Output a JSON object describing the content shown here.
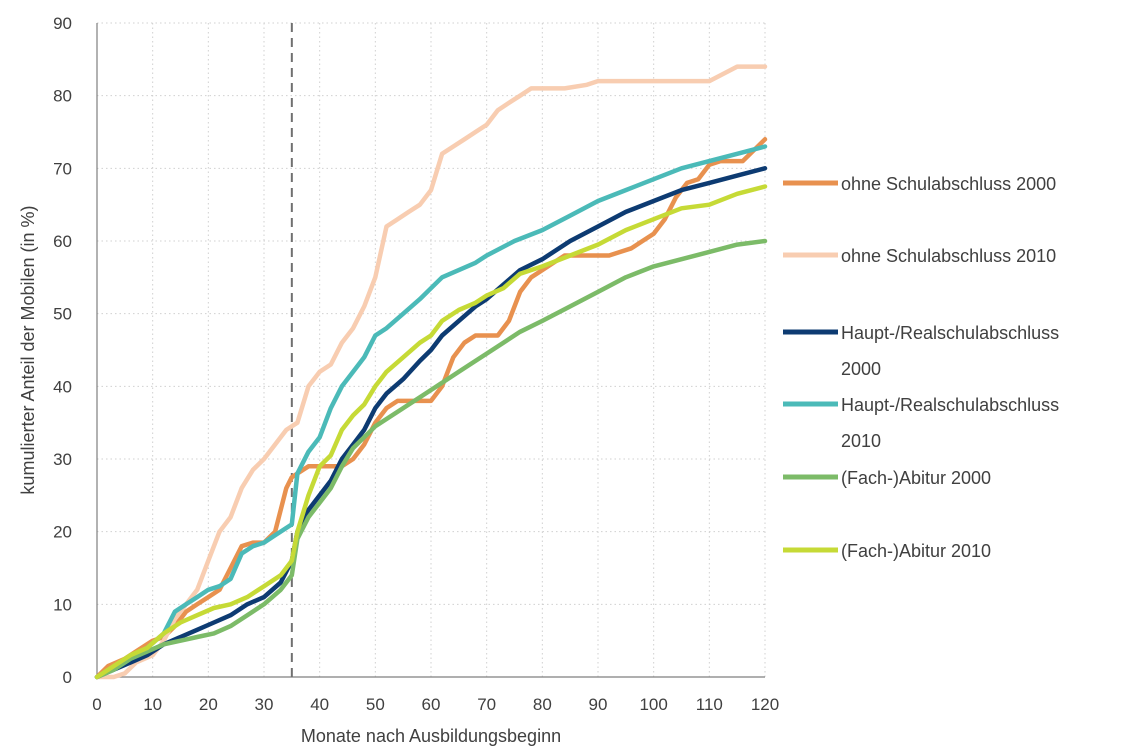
{
  "chart_data": {
    "type": "line",
    "xlabel": "Monate nach Ausbildungsbeginn",
    "ylabel": "kumulierter Anteil der Mobilen (in %)",
    "xlim": [
      0,
      120
    ],
    "ylim": [
      0,
      90
    ],
    "x_ticks": [
      0,
      10,
      20,
      30,
      40,
      50,
      60,
      70,
      80,
      90,
      100,
      110,
      120
    ],
    "y_ticks": [
      0,
      10,
      20,
      30,
      40,
      50,
      60,
      70,
      80,
      90
    ],
    "grid": "dotted",
    "reference_line": {
      "x": 35,
      "style": "dashed"
    },
    "legend_position": "right",
    "series": [
      {
        "name": "ohne Schulabschluss 2000",
        "legend_lines": [
          "ohne Schulabschluss 2000"
        ],
        "color": "#E8914F",
        "x": [
          0,
          2,
          5,
          8,
          10,
          12,
          14,
          16,
          18,
          20,
          22,
          24,
          26,
          28,
          30,
          32,
          34,
          35,
          36,
          38,
          40,
          42,
          44,
          46,
          48,
          50,
          52,
          54,
          56,
          58,
          60,
          62,
          64,
          66,
          68,
          70,
          72,
          74,
          76,
          78,
          80,
          82,
          84,
          86,
          88,
          90,
          92,
          94,
          96,
          98,
          100,
          102,
          104,
          106,
          108,
          110,
          112,
          114,
          116,
          118,
          120
        ],
        "y": [
          0,
          1.5,
          2.5,
          4,
          5,
          5.5,
          7,
          9,
          10,
          11,
          12,
          15,
          18,
          18.5,
          18.5,
          20,
          26,
          27.5,
          28,
          29,
          29,
          29,
          29,
          30,
          32,
          35,
          37,
          38,
          38,
          38,
          38,
          40,
          44,
          46,
          47,
          47,
          47,
          49,
          53,
          55,
          56,
          57,
          58,
          58,
          58,
          58,
          58,
          58.5,
          59,
          60,
          61,
          63,
          66,
          68,
          68.5,
          70.5,
          71,
          71,
          71,
          72.5,
          74
        ]
      },
      {
        "name": "ohne Schulabschluss 2010",
        "legend_lines": [
          "ohne Schulabschluss 2010"
        ],
        "color": "#F8CDB1",
        "x": [
          0,
          3,
          5,
          7,
          10,
          12,
          14,
          16,
          18,
          20,
          22,
          24,
          26,
          28,
          30,
          32,
          34,
          36,
          38,
          40,
          42,
          44,
          46,
          48,
          50,
          52,
          54,
          56,
          58,
          60,
          62,
          64,
          66,
          68,
          70,
          72,
          74,
          76,
          78,
          80,
          84,
          88,
          90,
          95,
          100,
          105,
          110,
          115,
          120
        ],
        "y": [
          0,
          0,
          0.5,
          2,
          3,
          5,
          8,
          10,
          12,
          16,
          20,
          22,
          26,
          28.5,
          30,
          32,
          34,
          35,
          40,
          42,
          43,
          46,
          48,
          51,
          55,
          62,
          63,
          64,
          65,
          67,
          72,
          73,
          74,
          75,
          76,
          78,
          79,
          80,
          81,
          81,
          81,
          81.5,
          82,
          82,
          82,
          82,
          82,
          84,
          84
        ]
      },
      {
        "name": "Haupt-/Realschulabschluss 2000",
        "legend_lines": [
          "Haupt-/Realschulabschluss",
          "2000"
        ],
        "color": "#0D3B72",
        "x": [
          0,
          3,
          6,
          9,
          12,
          15,
          18,
          21,
          24,
          27,
          30,
          33,
          35,
          36,
          38,
          40,
          42,
          44,
          46,
          48,
          50,
          52,
          55,
          58,
          60,
          62,
          65,
          68,
          70,
          73,
          76,
          80,
          85,
          90,
          95,
          100,
          105,
          110,
          115,
          120
        ],
        "y": [
          0,
          1,
          2,
          3,
          4.5,
          5.5,
          6.5,
          7.5,
          8.5,
          10,
          11,
          13,
          16,
          20,
          23,
          25,
          27,
          30,
          32,
          34,
          37,
          39,
          41,
          43.5,
          45,
          47,
          49,
          51,
          52,
          54,
          56,
          57.5,
          60,
          62,
          64,
          65.5,
          67,
          68,
          69,
          70
        ]
      },
      {
        "name": "Haupt-/Realschulabschluss 2010",
        "legend_lines": [
          "Haupt-/Realschulabschluss",
          "2010"
        ],
        "color": "#4BBAB8",
        "x": [
          0,
          3,
          6,
          9,
          12,
          14,
          16,
          18,
          20,
          22,
          24,
          26,
          28,
          30,
          32,
          35,
          36,
          38,
          40,
          42,
          44,
          46,
          48,
          50,
          52,
          55,
          58,
          60,
          62,
          65,
          68,
          70,
          75,
          80,
          85,
          90,
          95,
          100,
          105,
          110,
          115,
          120
        ],
        "y": [
          0,
          1,
          2.5,
          4,
          6,
          9,
          10,
          11,
          12,
          12.5,
          13.5,
          17,
          18,
          18.5,
          19.5,
          21,
          28,
          31,
          33,
          37,
          40,
          42,
          44,
          47,
          48,
          50,
          52,
          53.5,
          55,
          56,
          57,
          58,
          60,
          61.5,
          63.5,
          65.5,
          67,
          68.5,
          70,
          71,
          72,
          73
        ]
      },
      {
        "name": "(Fach-)Abitur 2000",
        "legend_lines": [
          "(Fach-)Abitur 2000"
        ],
        "color": "#7CBB68",
        "x": [
          0,
          3,
          6,
          9,
          12,
          15,
          18,
          21,
          24,
          27,
          30,
          33,
          35,
          36,
          38,
          40,
          42,
          44,
          46,
          48,
          50,
          52,
          55,
          58,
          60,
          62,
          65,
          68,
          70,
          73,
          76,
          80,
          85,
          90,
          95,
          100,
          105,
          110,
          115,
          120
        ],
        "y": [
          0,
          1,
          2.5,
          3.5,
          4.5,
          5,
          5.5,
          6,
          7,
          8.5,
          10,
          12,
          14,
          19,
          22,
          24,
          26,
          29,
          31.5,
          33,
          34.5,
          35.5,
          37,
          38.5,
          39.5,
          40.5,
          42,
          43.5,
          44.5,
          46,
          47.5,
          49,
          51,
          53,
          55,
          56.5,
          57.5,
          58.5,
          59.5,
          60
        ]
      },
      {
        "name": "(Fach-)Abitur 2010",
        "legend_lines": [
          "(Fach-)Abitur 2010"
        ],
        "color": "#C6DA36",
        "x": [
          0,
          3,
          6,
          9,
          12,
          15,
          18,
          21,
          24,
          27,
          30,
          33,
          35,
          36,
          38,
          40,
          42,
          44,
          46,
          48,
          50,
          52,
          55,
          58,
          60,
          62,
          65,
          68,
          70,
          73,
          76,
          80,
          85,
          90,
          95,
          100,
          105,
          110,
          115,
          120
        ],
        "y": [
          0,
          1.5,
          3,
          4,
          6,
          7.5,
          8.5,
          9.5,
          10,
          11,
          12.5,
          14,
          16,
          20,
          25,
          29,
          30.5,
          34,
          36,
          37.5,
          40,
          42,
          44,
          46,
          47,
          49,
          50.5,
          51.5,
          52.5,
          53.5,
          55.5,
          56.5,
          58,
          59.5,
          61.5,
          63,
          64.5,
          65,
          66.5,
          67.5
        ]
      }
    ]
  }
}
